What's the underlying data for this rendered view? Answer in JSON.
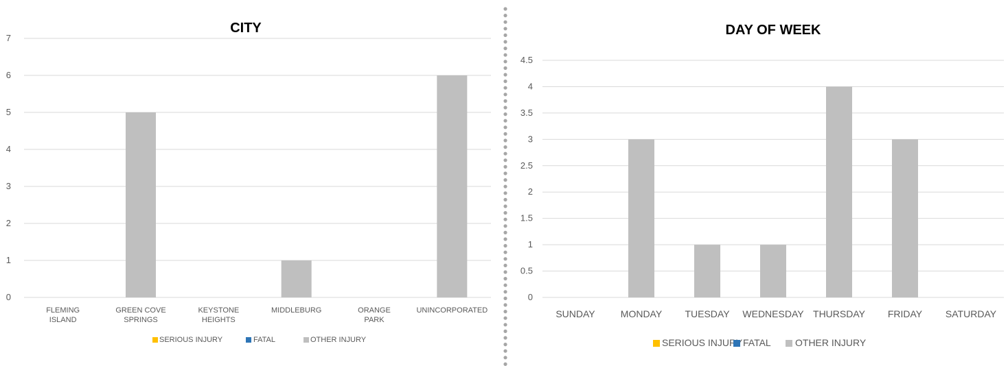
{
  "legend": {
    "entries": [
      "SERIOUS INJURY",
      "FATAL",
      "OTHER INJURY"
    ],
    "colors": [
      "#FFC000",
      "#2E75B6",
      "#BFBFBF"
    ],
    "placement": "bottom-center"
  },
  "chart_data": [
    {
      "type": "bar",
      "title": "CITY",
      "categories": [
        [
          "FLEMING",
          "ISLAND"
        ],
        [
          "GREEN COVE",
          "SPRINGS"
        ],
        [
          "KEYSTONE",
          "HEIGHTS"
        ],
        [
          "MIDDLEBURG"
        ],
        [
          "ORANGE",
          "PARK"
        ],
        [
          "UNINCORPORATED"
        ]
      ],
      "series": [
        {
          "name": "SERIOUS INJURY",
          "values": [
            0,
            0,
            0,
            0,
            0,
            0
          ]
        },
        {
          "name": "FATAL",
          "values": [
            0,
            0,
            0,
            0,
            0,
            0
          ]
        },
        {
          "name": "OTHER INJURY",
          "values": [
            0,
            5,
            0,
            1,
            0,
            6
          ]
        }
      ],
      "yticks": [
        "0",
        "1",
        "2",
        "3",
        "4",
        "5",
        "6",
        "7"
      ],
      "ylim": [
        0,
        7
      ],
      "grid": true
    },
    {
      "type": "bar",
      "title": "DAY OF WEEK",
      "categories": [
        [
          "SUNDAY"
        ],
        [
          "MONDAY"
        ],
        [
          "TUESDAY"
        ],
        [
          "WEDNESDAY"
        ],
        [
          "THURSDAY"
        ],
        [
          "FRIDAY"
        ],
        [
          "SATURDAY"
        ]
      ],
      "series": [
        {
          "name": "SERIOUS INJURY",
          "values": [
            0,
            0,
            0,
            0,
            0,
            0,
            0
          ]
        },
        {
          "name": "FATAL",
          "values": [
            0,
            0,
            0,
            0,
            0,
            0,
            0
          ]
        },
        {
          "name": "OTHER INJURY",
          "values": [
            0,
            3,
            1,
            1,
            4,
            3,
            0
          ]
        }
      ],
      "yticks": [
        "0",
        "0.5",
        "1",
        "1.5",
        "2",
        "2.5",
        "3",
        "3.5",
        "4",
        "4.5"
      ],
      "ylim": [
        0,
        4.5
      ],
      "grid": true
    }
  ]
}
